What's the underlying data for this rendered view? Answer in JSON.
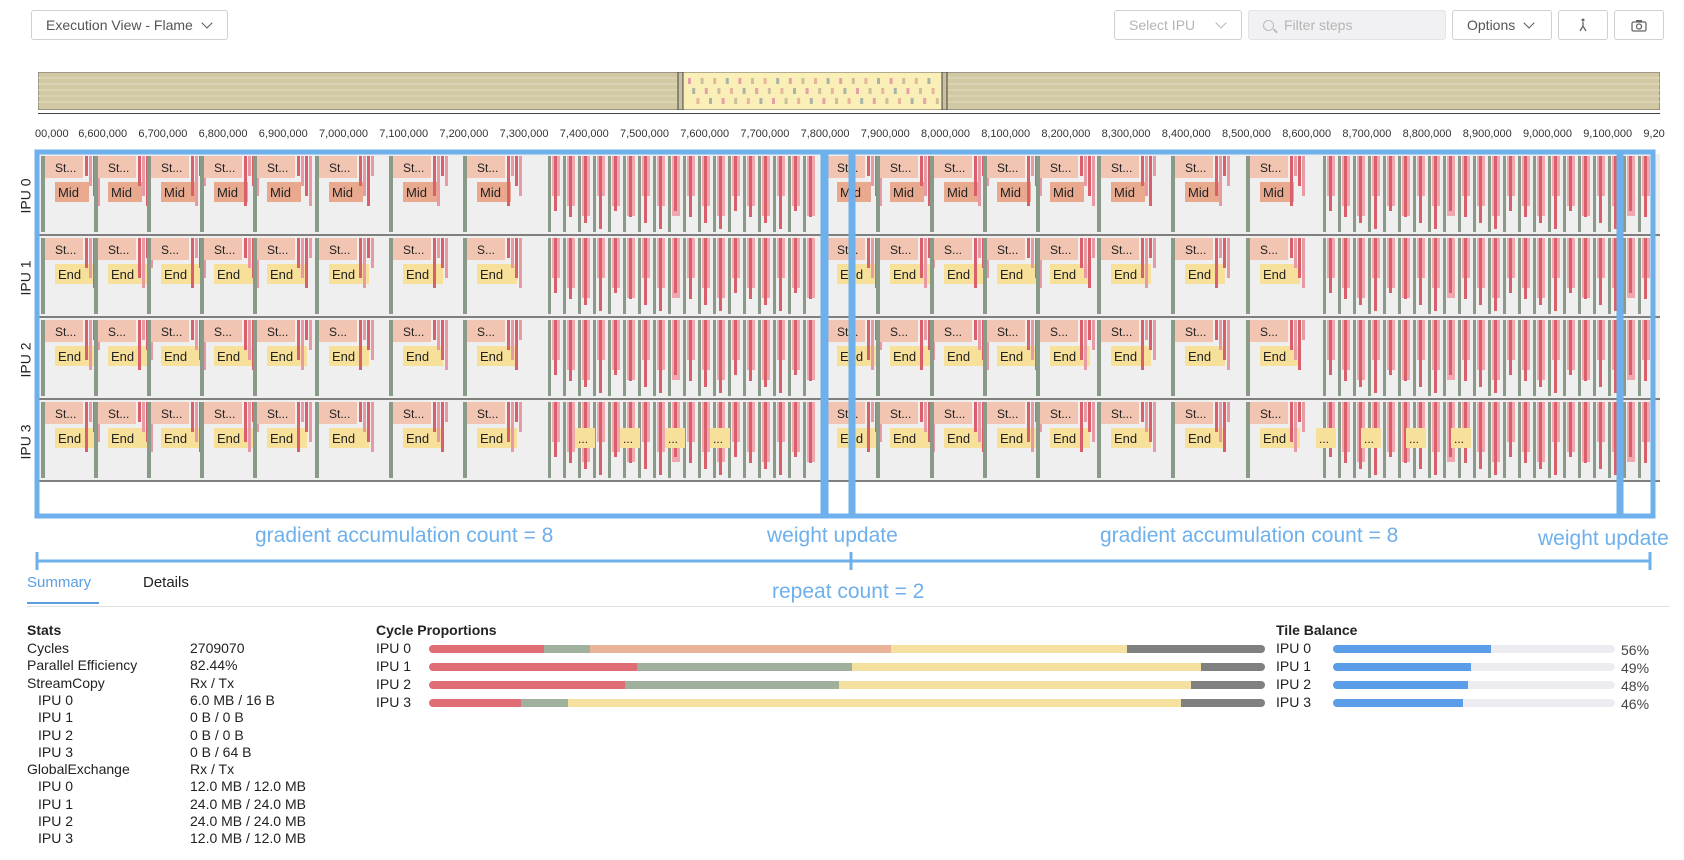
{
  "toolbar": {
    "view_select": "Execution View - Flame",
    "select_ipu": "Select IPU",
    "filter_placeholder": "Filter steps",
    "options": "Options"
  },
  "timeline": {
    "ticks": [
      "00,000",
      "6,600,000",
      "6,700,000",
      "6,800,000",
      "6,900,000",
      "7,000,000",
      "7,100,000",
      "7,200,000",
      "7,300,000",
      "7,400,000",
      "7,500,000",
      "7,600,000",
      "7,700,000",
      "7,800,000",
      "7,900,000",
      "8,000,000",
      "8,100,000",
      "8,200,000",
      "8,300,000",
      "8,400,000",
      "8,500,000",
      "8,600,000",
      "8,700,000",
      "8,800,000",
      "8,900,000",
      "9,000,000",
      "9,100,000",
      "9,20"
    ]
  },
  "flame": {
    "ipus": [
      {
        "name": "IPU 0",
        "top_labels": [
          "St...",
          "St...",
          "St...",
          "St...",
          "St...",
          "St...",
          "St...",
          "St...",
          "St...",
          "St...",
          "St...",
          "St...",
          "St...",
          "St...",
          "St...",
          "St..."
        ],
        "bottom_labels": [
          "Mid",
          "Mid",
          "Mid",
          "Mid",
          "Mid",
          "Mid",
          "Mid",
          "Mid",
          "Mid",
          "Mid",
          "Mid",
          "Mid",
          "Mid",
          "Mid",
          "Mid",
          "Mid"
        ]
      },
      {
        "name": "IPU 1",
        "top_labels": [
          "St...",
          "St...",
          "S...",
          "St...",
          "St...",
          "St...",
          "St...",
          "S...",
          "St...",
          "St...",
          "S...",
          "St...",
          "St...",
          "St...",
          "St...",
          "S..."
        ],
        "bottom_labels": [
          "End",
          "End",
          "End",
          "End",
          "End",
          "End",
          "End",
          "End",
          "End",
          "End",
          "End",
          "End",
          "End",
          "End",
          "End",
          "End"
        ]
      },
      {
        "name": "IPU 2",
        "top_labels": [
          "St...",
          "S...",
          "St...",
          "S...",
          "St...",
          "S...",
          "St...",
          "S...",
          "St...",
          "S...",
          "S...",
          "St...",
          "S...",
          "St...",
          "St...",
          "S..."
        ],
        "bottom_labels": [
          "End",
          "End",
          "End",
          "End",
          "End",
          "End",
          "End",
          "End",
          "End",
          "End",
          "End",
          "End",
          "End",
          "End",
          "End",
          "End"
        ]
      },
      {
        "name": "IPU 3",
        "top_labels": [
          "St...",
          "St...",
          "St...",
          "St...",
          "St...",
          "St...",
          "St...",
          "St...",
          "St...",
          "St...",
          "St...",
          "St...",
          "St...",
          "St...",
          "St...",
          "St..."
        ],
        "bottom_labels": [
          "End",
          "End",
          "End",
          "End",
          "End",
          "End",
          "End",
          "End",
          "End",
          "End",
          "End",
          "End",
          "End",
          "End",
          "End",
          "End"
        ],
        "tail_labels": [
          "...",
          "...",
          "...",
          "...",
          "...",
          "...",
          "...",
          "..."
        ]
      }
    ]
  },
  "annotations": {
    "grad1": "gradient accumulation count = 8",
    "weight1": "weight update",
    "grad2": "gradient accumulation count = 8",
    "weight2": "weight update",
    "repeat": "repeat count = 2"
  },
  "tabs": {
    "summary": "Summary",
    "details": "Details"
  },
  "stats": {
    "title": "Stats",
    "rows": [
      {
        "label": "Cycles",
        "value": "2709070",
        "indent": false
      },
      {
        "label": "Parallel Efficiency",
        "value": "82.44%",
        "indent": false
      },
      {
        "label": "StreamCopy",
        "value": "Rx / Tx",
        "indent": false
      },
      {
        "label": "IPU 0",
        "value": "6.0 MB / 16 B",
        "indent": true
      },
      {
        "label": "IPU 1",
        "value": "0 B / 0 B",
        "indent": true
      },
      {
        "label": "IPU 2",
        "value": "0 B / 0 B",
        "indent": true
      },
      {
        "label": "IPU 3",
        "value": "0 B / 64 B",
        "indent": true
      },
      {
        "label": "GlobalExchange",
        "value": "Rx / Tx",
        "indent": false
      },
      {
        "label": "IPU 0",
        "value": "12.0 MB / 12.0 MB",
        "indent": true
      },
      {
        "label": "IPU 1",
        "value": "24.0 MB / 24.0 MB",
        "indent": true
      },
      {
        "label": "IPU 2",
        "value": "24.0 MB / 24.0 MB",
        "indent": true
      },
      {
        "label": "IPU 3",
        "value": "12.0 MB / 12.0 MB",
        "indent": true
      }
    ]
  },
  "cycle_proportions": {
    "title": "Cycle Proportions",
    "colors": [
      "#e06c75",
      "#9fb09c",
      "#e9b39a",
      "#f4e1a0",
      "#808080"
    ],
    "rows": [
      {
        "label": "IPU 0",
        "fractions": [
          0.138,
          0.054,
          0.361,
          0.282,
          0.165
        ]
      },
      {
        "label": "IPU 1",
        "fractions": [
          0.249,
          0.257,
          0.0,
          0.418,
          0.076
        ]
      },
      {
        "label": "IPU 2",
        "fractions": [
          0.235,
          0.255,
          0.0,
          0.421,
          0.089
        ]
      },
      {
        "label": "IPU 3",
        "fractions": [
          0.11,
          0.056,
          0.0,
          0.733,
          0.101
        ]
      }
    ]
  },
  "tile_balance": {
    "title": "Tile Balance",
    "color": "#5b9de8",
    "rows": [
      {
        "label": "IPU 0",
        "value": 0.56,
        "text": "56%"
      },
      {
        "label": "IPU 1",
        "value": 0.49,
        "text": "49%"
      },
      {
        "label": "IPU 2",
        "value": 0.48,
        "text": "48%"
      },
      {
        "label": "IPU 3",
        "value": 0.46,
        "text": "46%"
      }
    ]
  }
}
